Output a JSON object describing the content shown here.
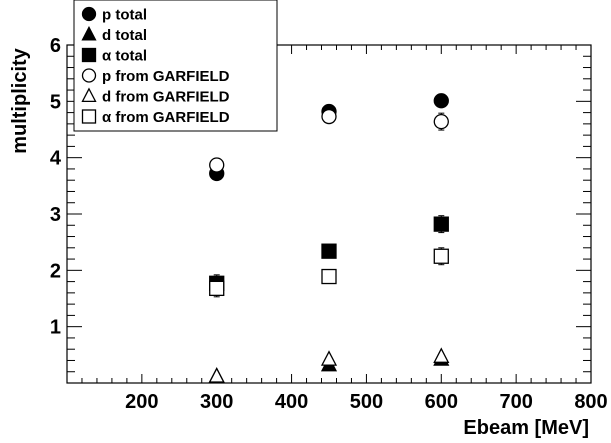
{
  "chart_data": {
    "type": "scatter",
    "title": "",
    "xlabel": "Ebeam [MeV]",
    "ylabel": "multiplicity",
    "xlim": [
      100,
      800
    ],
    "ylim": [
      0,
      6
    ],
    "x_ticks": [
      200,
      300,
      400,
      500,
      600,
      700,
      800
    ],
    "y_ticks": [
      1,
      2,
      3,
      4,
      5,
      6
    ],
    "grid": false,
    "legend_position": "top-left",
    "series": [
      {
        "name": "p total",
        "marker": "circle",
        "filled": true,
        "color": "#000000",
        "points": [
          {
            "x": 300,
            "y": 3.72
          },
          {
            "x": 450,
            "y": 4.82
          },
          {
            "x": 600,
            "y": 5.01
          }
        ],
        "errors": [
          0.03,
          0.03,
          0.1
        ]
      },
      {
        "name": "d total",
        "marker": "triangle",
        "filled": true,
        "color": "#000000",
        "points": [
          {
            "x": 300,
            "y": 0.12
          },
          {
            "x": 450,
            "y": 0.32
          },
          {
            "x": 600,
            "y": 0.42
          }
        ],
        "errors": [
          0.02,
          0.02,
          0.02
        ]
      },
      {
        "name": "α total",
        "marker": "square",
        "filled": true,
        "color": "#000000",
        "points": [
          {
            "x": 300,
            "y": 1.77
          },
          {
            "x": 450,
            "y": 2.34
          },
          {
            "x": 600,
            "y": 2.82
          }
        ],
        "errors": [
          0.15,
          0.03,
          0.15
        ]
      },
      {
        "name": "p from GARFIELD",
        "marker": "circle",
        "filled": false,
        "color": "#000000",
        "points": [
          {
            "x": 300,
            "y": 3.87
          },
          {
            "x": 450,
            "y": 4.73
          },
          {
            "x": 600,
            "y": 4.64
          }
        ],
        "errors": [
          0.03,
          0.03,
          0.15
        ]
      },
      {
        "name": "d from GARFIELD",
        "marker": "triangle",
        "filled": false,
        "color": "#000000",
        "points": [
          {
            "x": 300,
            "y": 0.12
          },
          {
            "x": 450,
            "y": 0.42
          },
          {
            "x": 600,
            "y": 0.47
          }
        ],
        "errors": [
          0.02,
          0.02,
          0.02
        ]
      },
      {
        "name": "α from GARFIELD",
        "marker": "square",
        "filled": false,
        "color": "#000000",
        "points": [
          {
            "x": 300,
            "y": 1.68
          },
          {
            "x": 450,
            "y": 1.89
          },
          {
            "x": 600,
            "y": 2.25
          }
        ],
        "errors": [
          0.15,
          0.03,
          0.15
        ]
      }
    ]
  }
}
